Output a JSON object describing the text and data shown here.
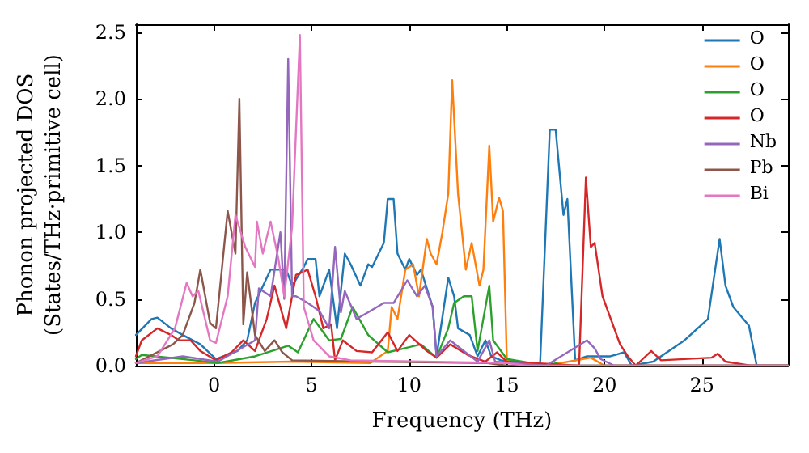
{
  "chart_data": {
    "type": "line",
    "xlabel": "Frequency (THz)",
    "ylabel": "Phonon projected DOS\n(States/THz·primitive cell)",
    "xlim": [
      -4,
      29.4
    ],
    "ylim": [
      0,
      2.56
    ],
    "xticks": [
      0,
      5,
      10,
      15,
      20,
      25
    ],
    "yticks": [
      {
        "value": 0,
        "label": "0.0"
      },
      0.5,
      {
        "value": 1,
        "label": "1.0"
      },
      1.5,
      {
        "value": 2,
        "label": "2.0"
      },
      2.5
    ],
    "grid": false,
    "legend": "top right",
    "marker": "none",
    "line_style": "solid",
    "series": [
      {
        "name": "O",
        "color": "#1f77b4",
        "x": [
          -4,
          -3.2,
          -2.9,
          -2.2,
          -1.6,
          -0.7,
          0.1,
          1.2,
          1.7,
          2.1,
          2.9,
          3.7,
          4,
          4.6,
          4.8,
          5.2,
          5.4,
          5.9,
          6.3,
          6.7,
          7,
          7.5,
          7.9,
          8.1,
          8.7,
          8.9,
          9.2,
          9.4,
          9.8,
          10,
          10.4,
          10.6,
          11.2,
          11.4,
          12,
          12.3,
          12.5,
          13.1,
          13.5,
          13.9,
          14.2,
          14.7,
          16.7,
          17.2,
          17.5,
          17.9,
          18.1,
          18.5,
          19.1,
          20.3,
          21,
          21.4,
          22.5,
          24.1,
          25.3,
          25.9,
          26.2,
          26.6,
          27.4,
          27.8,
          29.4
        ],
        "values": [
          0.23,
          0.35,
          0.36,
          0.28,
          0.23,
          0.16,
          0.05,
          0.11,
          0.19,
          0.47,
          0.72,
          0.72,
          0.6,
          0.74,
          0.8,
          0.8,
          0.52,
          0.72,
          0.28,
          0.84,
          0.76,
          0.6,
          0.76,
          0.74,
          0.92,
          1.25,
          1.25,
          0.84,
          0.72,
          0.8,
          0.68,
          0.72,
          0.44,
          0.07,
          0.66,
          0.52,
          0.28,
          0.23,
          0.07,
          0.19,
          0.07,
          0.04,
          0,
          1.77,
          1.77,
          1.13,
          1.25,
          0.04,
          0.07,
          0.07,
          0.1,
          0,
          0.03,
          0.19,
          0.35,
          0.95,
          0.6,
          0.44,
          0.3,
          0,
          0
        ]
      },
      {
        "name": "O",
        "color": "#ff7f0e",
        "x": [
          -4,
          0,
          4,
          8,
          8.9,
          9.1,
          9.4,
          9.8,
          10.2,
          10.5,
          10.9,
          11.1,
          11.4,
          11.7,
          12,
          12.2,
          12.5,
          12.9,
          13.2,
          13.6,
          13.8,
          14.1,
          14.3,
          14.6,
          14.8,
          15,
          17,
          19.3,
          20,
          29.4
        ],
        "values": [
          0.02,
          0.02,
          0.03,
          0.02,
          0.11,
          0.44,
          0.35,
          0.72,
          0.76,
          0.52,
          0.95,
          0.84,
          0.76,
          1,
          1.29,
          2.14,
          1.29,
          0.72,
          0.92,
          0.6,
          0.72,
          1.65,
          1.08,
          1.26,
          1.16,
          0.04,
          0,
          0.06,
          0,
          0
        ]
      },
      {
        "name": "O",
        "color": "#2ca02c",
        "x": [
          -4,
          -3.7,
          -1,
          0.2,
          2.1,
          3.8,
          4.3,
          5.1,
          5.9,
          6.5,
          7.1,
          7.9,
          8.9,
          10.6,
          11.4,
          12,
          12.3,
          12.8,
          13.2,
          13.5,
          14.1,
          14.3,
          15,
          17,
          17.4,
          17.8,
          29.4
        ],
        "values": [
          0.05,
          0.08,
          0.04,
          0.02,
          0.07,
          0.15,
          0.1,
          0.35,
          0.19,
          0.2,
          0.44,
          0.23,
          0.1,
          0.16,
          0.06,
          0.28,
          0.47,
          0.52,
          0.52,
          0.11,
          0.6,
          0.19,
          0.05,
          0,
          0.03,
          0,
          0
        ]
      },
      {
        "name": "O",
        "color": "#d62728",
        "x": [
          -4,
          -3.7,
          -2.9,
          -2.2,
          -1.8,
          -1.2,
          -0.7,
          0.1,
          0.9,
          1.5,
          2.1,
          2.7,
          3.1,
          3.7,
          4.2,
          4.8,
          5.2,
          5.6,
          6,
          6.2,
          6.6,
          7.3,
          8.1,
          8.9,
          9.4,
          10,
          10.9,
          11.4,
          12.1,
          13,
          13.9,
          14.5,
          15,
          18.7,
          19.05,
          19.3,
          19.5,
          19.9,
          20.8,
          21.2,
          21.6,
          22.4,
          22.9,
          25.5,
          25.8,
          26.2,
          27.5,
          29.4
        ],
        "values": [
          0.07,
          0.19,
          0.28,
          0.23,
          0.19,
          0.19,
          0.11,
          0.04,
          0.1,
          0.19,
          0.11,
          0.35,
          0.6,
          0.28,
          0.68,
          0.72,
          0.52,
          0.28,
          0.31,
          0.04,
          0.19,
          0.11,
          0.1,
          0.25,
          0.11,
          0.23,
          0.11,
          0.06,
          0.16,
          0.08,
          0.03,
          0.1,
          0.03,
          0,
          1.41,
          0.89,
          0.92,
          0.52,
          0.16,
          0.07,
          0,
          0.11,
          0.04,
          0.06,
          0.09,
          0.03,
          0,
          0
        ]
      },
      {
        "name": "Nb",
        "color": "#9467bd",
        "x": [
          -4,
          -1.6,
          0.2,
          2.1,
          2.3,
          2.9,
          3.4,
          3.6,
          3.8,
          4,
          4.2,
          4.8,
          5.4,
          5.9,
          6.2,
          6.5,
          6.7,
          7.3,
          7.9,
          8.7,
          9.2,
          9.9,
          10.4,
          10.8,
          11.2,
          11.4,
          12.1,
          12.8,
          13.5,
          14.1,
          14.4,
          17,
          19.1,
          19.5,
          19.8,
          20.5,
          29.4
        ],
        "values": [
          0.02,
          0.07,
          0.03,
          0.19,
          0.58,
          0.52,
          1,
          0.5,
          2.3,
          0.52,
          0.52,
          0.47,
          0.41,
          0.28,
          0.89,
          0.4,
          0.56,
          0.35,
          0.4,
          0.47,
          0.47,
          0.64,
          0.52,
          0.6,
          0.44,
          0.07,
          0.19,
          0.11,
          0.03,
          0.19,
          0.03,
          0,
          0.19,
          0.13,
          0.05,
          0,
          0
        ]
      },
      {
        "name": "Pb",
        "color": "#8c564b",
        "x": [
          -4,
          -2.1,
          -1.6,
          -1,
          -0.7,
          -0.2,
          0.1,
          0.7,
          1.1,
          1.3,
          1.5,
          1.7,
          2.1,
          2.6,
          3.1,
          3.5,
          4,
          8,
          14,
          15,
          29.4
        ],
        "values": [
          0.02,
          0.16,
          0.23,
          0.47,
          0.72,
          0.32,
          0.28,
          1.16,
          0.84,
          2,
          0.31,
          0.7,
          0.23,
          0.11,
          0.19,
          0.1,
          0.04,
          0.03,
          0.02,
          0,
          0
        ]
      },
      {
        "name": "Bi",
        "color": "#e377c2",
        "x": [
          -4,
          -2.9,
          -2,
          -1.4,
          -1.1,
          -0.8,
          -0.2,
          0.1,
          0.7,
          1.1,
          1.6,
          2.1,
          2.2,
          2.5,
          2.9,
          3.3,
          3.6,
          4,
          4.4,
          4.6,
          5.1,
          5.9,
          7,
          15,
          16,
          29.4
        ],
        "values": [
          0.02,
          0.07,
          0.28,
          0.62,
          0.52,
          0.56,
          0.19,
          0.17,
          0.52,
          1.13,
          0.89,
          0.74,
          1.08,
          0.84,
          1.08,
          0.8,
          0.52,
          1.04,
          2.48,
          0.44,
          0.19,
          0.07,
          0.04,
          0.02,
          0,
          0
        ]
      }
    ]
  }
}
